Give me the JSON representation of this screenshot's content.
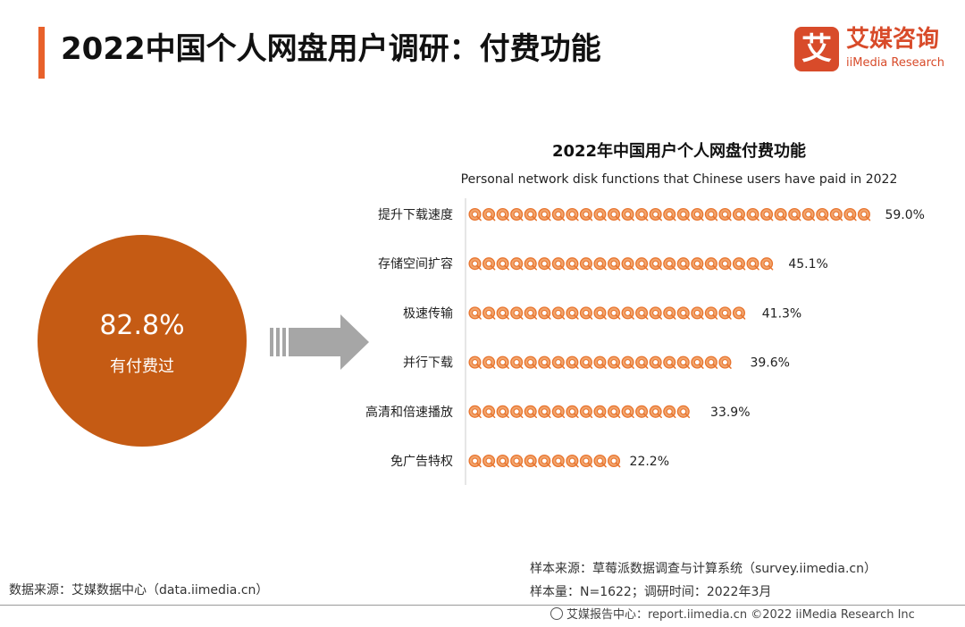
{
  "header": {
    "title": "2022中国个人网盘用户调研：付费功能",
    "logo_mark": "艾",
    "logo_cn": "艾媒咨询",
    "logo_en": "iiMedia Research"
  },
  "summary": {
    "value": "82.8%",
    "label": "有付费过"
  },
  "chart_data": {
    "type": "bar",
    "title": "2022年中国用户个人网盘付费功能",
    "subtitle": "Personal network disk functions that Chinese users have paid in 2022",
    "categories": [
      "提升下载速度",
      "存储空间扩容",
      "极速传输",
      "并行下载",
      "高清和倍速播放",
      "免广告特权"
    ],
    "values": [
      59.0,
      45.1,
      41.3,
      39.6,
      33.9,
      22.2
    ],
    "value_labels": [
      "59.0%",
      "45.1%",
      "41.3%",
      "39.6%",
      "33.9%",
      "22.2%"
    ],
    "units_per_icon": 2.0,
    "xlabel": "",
    "ylabel": "",
    "xlim": [
      0,
      60
    ],
    "mark": "pictograph",
    "colors": {
      "icon_fill": "#f2a56d",
      "icon_stroke": "#e8742e",
      "axis": "#cccccc"
    }
  },
  "sources": {
    "left": "数据来源：艾媒数据中心（data.iimedia.cn）",
    "right_line1": "样本来源：草莓派数据调查与计算系统（survey.iimedia.cn）",
    "right_line2": "样本量：N=1622；调研时间：2022年3月"
  },
  "footer": {
    "text": "艾媒报告中心：report.iimedia.cn  ©2022 iiMedia Research Inc"
  }
}
